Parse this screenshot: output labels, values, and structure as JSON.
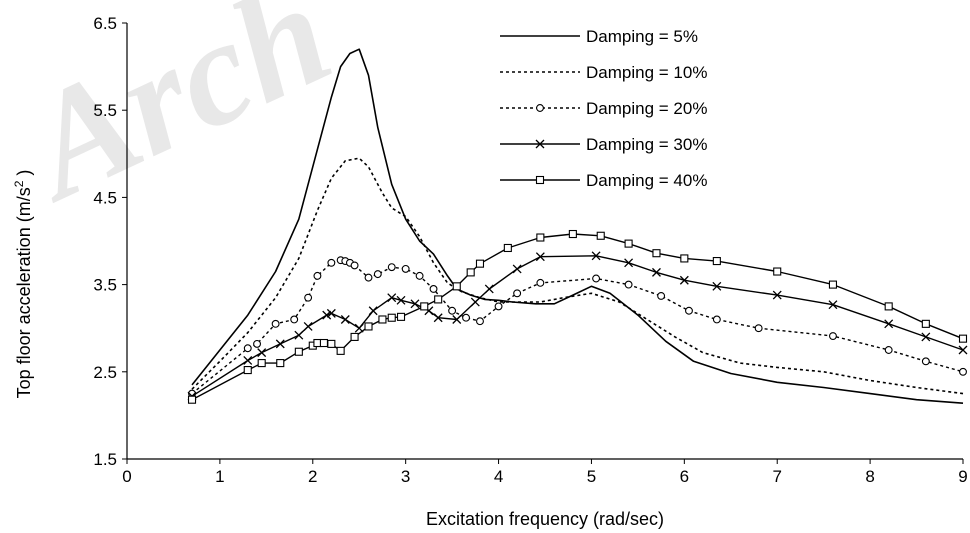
{
  "watermark": "Arch",
  "chart_data": {
    "type": "line",
    "title": "",
    "xlabel": "Excitation frequency (rad/sec)",
    "ylabel_main": "Top floor acceleration (m/s",
    "ylabel_sup": "2",
    "ylabel_tail": " )",
    "xlim": [
      0,
      9
    ],
    "ylim": [
      1.5,
      6.5
    ],
    "xticks": [
      0,
      1,
      2,
      3,
      4,
      5,
      6,
      7,
      8,
      9
    ],
    "yticks": [
      1.5,
      2.5,
      3.5,
      4.5,
      5.5,
      6.5
    ],
    "xtick_labels": [
      "0",
      "1",
      "2",
      "3",
      "4",
      "5",
      "6",
      "7",
      "8",
      "9"
    ],
    "ytick_labels": [
      "1.5",
      "2.5",
      "3.5",
      "4.5",
      "5.5",
      "6.5"
    ],
    "grid": false,
    "legend_position": "top-right",
    "series": [
      {
        "name": "Damping = 5%",
        "style": "solid",
        "marker": "none",
        "color": "#000000",
        "points": [
          [
            0.7,
            2.35
          ],
          [
            1.0,
            2.75
          ],
          [
            1.3,
            3.15
          ],
          [
            1.6,
            3.65
          ],
          [
            1.85,
            4.25
          ],
          [
            2.05,
            5.05
          ],
          [
            2.2,
            5.65
          ],
          [
            2.3,
            6.0
          ],
          [
            2.4,
            6.15
          ],
          [
            2.5,
            6.2
          ],
          [
            2.6,
            5.9
          ],
          [
            2.7,
            5.3
          ],
          [
            2.85,
            4.65
          ],
          [
            3.0,
            4.25
          ],
          [
            3.15,
            4.0
          ],
          [
            3.3,
            3.85
          ],
          [
            3.45,
            3.6
          ],
          [
            3.55,
            3.45
          ],
          [
            3.7,
            3.38
          ],
          [
            3.85,
            3.33
          ],
          [
            4.0,
            3.32
          ],
          [
            4.15,
            3.3
          ],
          [
            4.4,
            3.28
          ],
          [
            4.6,
            3.28
          ],
          [
            4.8,
            3.38
          ],
          [
            5.0,
            3.48
          ],
          [
            5.2,
            3.4
          ],
          [
            5.5,
            3.15
          ],
          [
            5.8,
            2.85
          ],
          [
            6.1,
            2.62
          ],
          [
            6.5,
            2.48
          ],
          [
            7.0,
            2.38
          ],
          [
            7.5,
            2.32
          ],
          [
            8.0,
            2.25
          ],
          [
            8.5,
            2.18
          ],
          [
            9.0,
            2.14
          ]
        ]
      },
      {
        "name": "Damping = 10%",
        "style": "dotted",
        "marker": "none",
        "color": "#000000",
        "points": [
          [
            0.7,
            2.3
          ],
          [
            1.0,
            2.62
          ],
          [
            1.3,
            2.95
          ],
          [
            1.6,
            3.35
          ],
          [
            1.85,
            3.8
          ],
          [
            2.05,
            4.35
          ],
          [
            2.2,
            4.72
          ],
          [
            2.35,
            4.92
          ],
          [
            2.5,
            4.95
          ],
          [
            2.6,
            4.85
          ],
          [
            2.75,
            4.55
          ],
          [
            2.85,
            4.38
          ],
          [
            3.0,
            4.28
          ],
          [
            3.15,
            4.05
          ],
          [
            3.3,
            3.75
          ],
          [
            3.45,
            3.52
          ],
          [
            3.6,
            3.42
          ],
          [
            3.8,
            3.35
          ],
          [
            4.0,
            3.3
          ],
          [
            4.2,
            3.3
          ],
          [
            4.45,
            3.3
          ],
          [
            4.7,
            3.35
          ],
          [
            5.0,
            3.4
          ],
          [
            5.3,
            3.3
          ],
          [
            5.6,
            3.1
          ],
          [
            5.9,
            2.9
          ],
          [
            6.2,
            2.72
          ],
          [
            6.6,
            2.6
          ],
          [
            7.0,
            2.55
          ],
          [
            7.5,
            2.5
          ],
          [
            8.0,
            2.4
          ],
          [
            8.5,
            2.32
          ],
          [
            9.0,
            2.25
          ]
        ]
      },
      {
        "name": "Damping = 20%",
        "style": "dotted",
        "marker": "circle",
        "color": "#000000",
        "points": [
          [
            0.7,
            2.25
          ],
          [
            1.3,
            2.77
          ],
          [
            1.4,
            2.82
          ],
          [
            1.6,
            3.05
          ],
          [
            1.8,
            3.1
          ],
          [
            1.95,
            3.35
          ],
          [
            2.05,
            3.6
          ],
          [
            2.2,
            3.75
          ],
          [
            2.3,
            3.78
          ],
          [
            2.35,
            3.77
          ],
          [
            2.4,
            3.75
          ],
          [
            2.45,
            3.72
          ],
          [
            2.6,
            3.58
          ],
          [
            2.7,
            3.62
          ],
          [
            2.85,
            3.7
          ],
          [
            3.0,
            3.68
          ],
          [
            3.15,
            3.6
          ],
          [
            3.3,
            3.45
          ],
          [
            3.5,
            3.2
          ],
          [
            3.65,
            3.12
          ],
          [
            3.8,
            3.08
          ],
          [
            4.0,
            3.25
          ],
          [
            4.2,
            3.4
          ],
          [
            4.45,
            3.52
          ],
          [
            5.05,
            3.57
          ],
          [
            5.4,
            3.5
          ],
          [
            5.75,
            3.37
          ],
          [
            6.05,
            3.2
          ],
          [
            6.35,
            3.1
          ],
          [
            6.8,
            3.0
          ],
          [
            7.6,
            2.91
          ],
          [
            8.2,
            2.75
          ],
          [
            8.6,
            2.62
          ],
          [
            9.0,
            2.5
          ]
        ]
      },
      {
        "name": "Damping = 30%",
        "style": "solid",
        "marker": "x",
        "color": "#000000",
        "points": [
          [
            0.7,
            2.22
          ],
          [
            1.3,
            2.63
          ],
          [
            1.45,
            2.72
          ],
          [
            1.65,
            2.82
          ],
          [
            1.85,
            2.92
          ],
          [
            1.95,
            3.02
          ],
          [
            2.15,
            3.15
          ],
          [
            2.2,
            3.17
          ],
          [
            2.35,
            3.1
          ],
          [
            2.5,
            3.0
          ],
          [
            2.65,
            3.2
          ],
          [
            2.85,
            3.35
          ],
          [
            2.95,
            3.32
          ],
          [
            3.1,
            3.28
          ],
          [
            3.25,
            3.2
          ],
          [
            3.35,
            3.12
          ],
          [
            3.55,
            3.1
          ],
          [
            3.75,
            3.3
          ],
          [
            3.9,
            3.45
          ],
          [
            4.2,
            3.68
          ],
          [
            4.45,
            3.82
          ],
          [
            5.05,
            3.83
          ],
          [
            5.4,
            3.75
          ],
          [
            5.7,
            3.64
          ],
          [
            6.0,
            3.55
          ],
          [
            6.35,
            3.48
          ],
          [
            7.0,
            3.38
          ],
          [
            7.6,
            3.27
          ],
          [
            8.2,
            3.05
          ],
          [
            8.6,
            2.9
          ],
          [
            9.0,
            2.75
          ]
        ]
      },
      {
        "name": "Damping = 40%",
        "style": "solid",
        "marker": "square",
        "color": "#000000",
        "points": [
          [
            0.7,
            2.18
          ],
          [
            1.3,
            2.52
          ],
          [
            1.45,
            2.6
          ],
          [
            1.65,
            2.6
          ],
          [
            1.85,
            2.73
          ],
          [
            2.0,
            2.8
          ],
          [
            2.05,
            2.83
          ],
          [
            2.12,
            2.83
          ],
          [
            2.2,
            2.82
          ],
          [
            2.3,
            2.74
          ],
          [
            2.45,
            2.9
          ],
          [
            2.6,
            3.02
          ],
          [
            2.75,
            3.1
          ],
          [
            2.85,
            3.12
          ],
          [
            2.95,
            3.13
          ],
          [
            3.2,
            3.25
          ],
          [
            3.35,
            3.33
          ],
          [
            3.55,
            3.48
          ],
          [
            3.7,
            3.64
          ],
          [
            3.8,
            3.74
          ],
          [
            4.1,
            3.92
          ],
          [
            4.45,
            4.04
          ],
          [
            4.8,
            4.08
          ],
          [
            5.1,
            4.06
          ],
          [
            5.4,
            3.97
          ],
          [
            5.7,
            3.86
          ],
          [
            6.0,
            3.8
          ],
          [
            6.35,
            3.77
          ],
          [
            7.0,
            3.65
          ],
          [
            7.6,
            3.5
          ],
          [
            8.2,
            3.25
          ],
          [
            8.6,
            3.05
          ],
          [
            9.0,
            2.88
          ]
        ]
      }
    ]
  }
}
